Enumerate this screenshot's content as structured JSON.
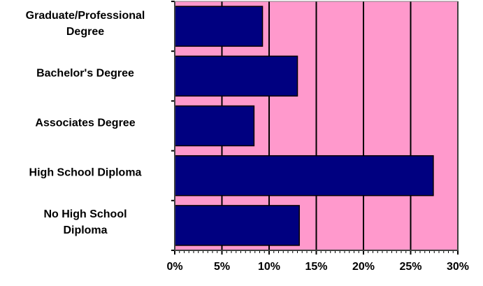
{
  "chart_data": {
    "type": "barh",
    "categories": [
      "Graduate/Professional\nDegree",
      "Bachelor's Degree",
      "Associates Degree",
      "High School Diploma",
      "No High School\nDiploma"
    ],
    "values": [
      9.3,
      13.0,
      8.4,
      27.4,
      13.2
    ],
    "color": "#000080",
    "plot_background": "#ff99cc",
    "xlim": [
      0,
      30
    ],
    "xticks": [
      {
        "value": 0,
        "label": "0%"
      },
      {
        "value": 5,
        "label": "5%"
      },
      {
        "value": 10,
        "label": "10%"
      },
      {
        "value": 15,
        "label": "15%"
      },
      {
        "value": 20,
        "label": "20%"
      },
      {
        "value": 25,
        "label": "25%"
      },
      {
        "value": 30,
        "label": "30%"
      }
    ],
    "grid": true
  }
}
